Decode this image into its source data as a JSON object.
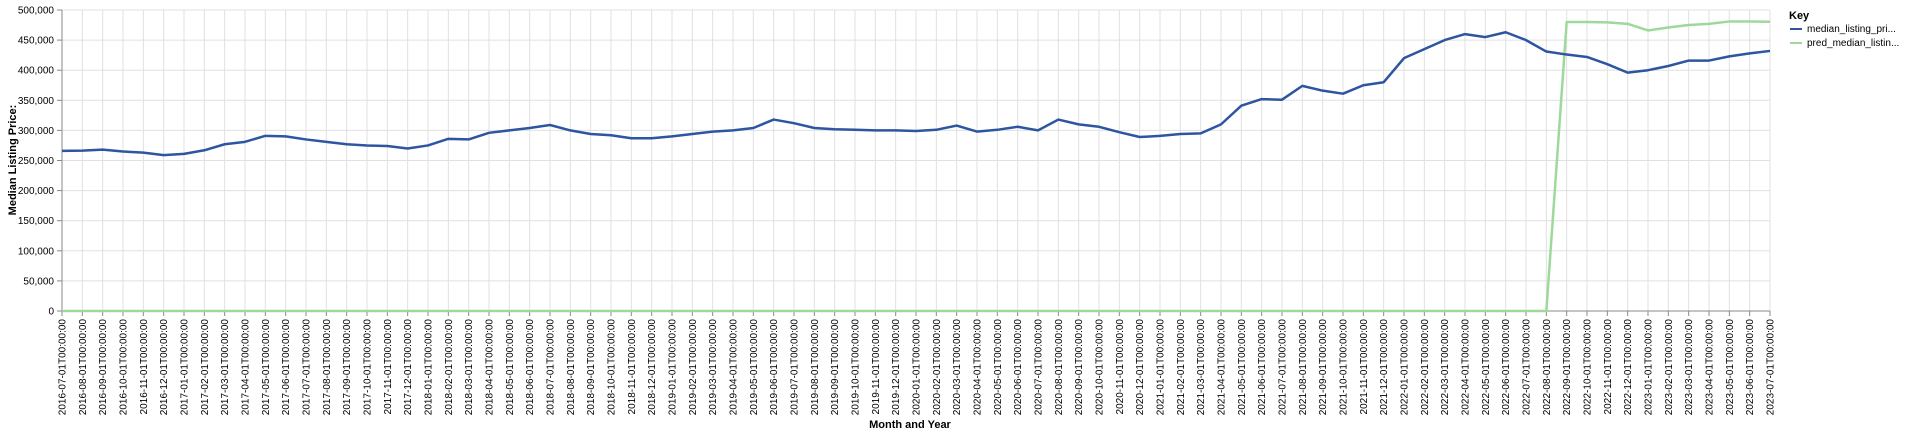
{
  "chart_data": {
    "type": "line",
    "xlabel": "Month and Year",
    "ylabel": "Median Listing Price:",
    "ylim": [
      0,
      500000
    ],
    "yticks": [
      "0",
      "50,000",
      "100,000",
      "150,000",
      "200,000",
      "250,000",
      "300,000",
      "350,000",
      "400,000",
      "450,000",
      "500,000"
    ],
    "grid": true,
    "legend": {
      "title": "Key",
      "position": "right"
    },
    "x": [
      "2016-07-01T00:00:00",
      "2016-08-01T00:00:00",
      "2016-09-01T00:00:00",
      "2016-10-01T00:00:00",
      "2016-11-01T00:00:00",
      "2016-12-01T00:00:00",
      "2017-01-01T00:00:00",
      "2017-02-01T00:00:00",
      "2017-03-01T00:00:00",
      "2017-04-01T00:00:00",
      "2017-05-01T00:00:00",
      "2017-06-01T00:00:00",
      "2017-07-01T00:00:00",
      "2017-08-01T00:00:00",
      "2017-09-01T00:00:00",
      "2017-10-01T00:00:00",
      "2017-11-01T00:00:00",
      "2017-12-01T00:00:00",
      "2018-01-01T00:00:00",
      "2018-02-01T00:00:00",
      "2018-03-01T00:00:00",
      "2018-04-01T00:00:00",
      "2018-05-01T00:00:00",
      "2018-06-01T00:00:00",
      "2018-07-01T00:00:00",
      "2018-08-01T00:00:00",
      "2018-09-01T00:00:00",
      "2018-10-01T00:00:00",
      "2018-11-01T00:00:00",
      "2018-12-01T00:00:00",
      "2019-01-01T00:00:00",
      "2019-02-01T00:00:00",
      "2019-03-01T00:00:00",
      "2019-04-01T00:00:00",
      "2019-05-01T00:00:00",
      "2019-06-01T00:00:00",
      "2019-07-01T00:00:00",
      "2019-08-01T00:00:00",
      "2019-09-01T00:00:00",
      "2019-10-01T00:00:00",
      "2019-11-01T00:00:00",
      "2019-12-01T00:00:00",
      "2020-01-01T00:00:00",
      "2020-02-01T00:00:00",
      "2020-03-01T00:00:00",
      "2020-04-01T00:00:00",
      "2020-05-01T00:00:00",
      "2020-06-01T00:00:00",
      "2020-07-01T00:00:00",
      "2020-08-01T00:00:00",
      "2020-09-01T00:00:00",
      "2020-10-01T00:00:00",
      "2020-11-01T00:00:00",
      "2020-12-01T00:00:00",
      "2021-01-01T00:00:00",
      "2021-02-01T00:00:00",
      "2021-03-01T00:00:00",
      "2021-04-01T00:00:00",
      "2021-05-01T00:00:00",
      "2021-06-01T00:00:00",
      "2021-07-01T00:00:00",
      "2021-08-01T00:00:00",
      "2021-09-01T00:00:00",
      "2021-10-01T00:00:00",
      "2021-11-01T00:00:00",
      "2021-12-01T00:00:00",
      "2022-01-01T00:00:00",
      "2022-02-01T00:00:00",
      "2022-03-01T00:00:00",
      "2022-04-01T00:00:00",
      "2022-05-01T00:00:00",
      "2022-06-01T00:00:00",
      "2022-07-01T00:00:00",
      "2022-08-01T00:00:00",
      "2022-09-01T00:00:00",
      "2022-10-01T00:00:00",
      "2022-11-01T00:00:00",
      "2022-12-01T00:00:00",
      "2023-01-01T00:00:00",
      "2023-02-01T00:00:00",
      "2023-03-01T00:00:00",
      "2023-04-01T00:00:00",
      "2023-05-01T00:00:00",
      "2023-06-01T00:00:00",
      "2023-07-01T00:00:00"
    ],
    "series": [
      {
        "name": "median_listing_pri...",
        "color": "#2d55a0",
        "values": [
          266000,
          266500,
          268000,
          265000,
          263000,
          259000,
          261000,
          267000,
          277000,
          281000,
          291000,
          290000,
          285000,
          281000,
          277000,
          275000,
          274000,
          270000,
          275000,
          286000,
          285000,
          296000,
          300000,
          304000,
          309000,
          300000,
          294000,
          292000,
          287000,
          287000,
          290000,
          294000,
          298000,
          300000,
          304000,
          318000,
          312000,
          304000,
          302000,
          301000,
          300000,
          300000,
          299000,
          301000,
          308000,
          298000,
          301000,
          306000,
          300000,
          318000,
          310000,
          306000,
          297000,
          289000,
          291000,
          294000,
          295000,
          310000,
          341000,
          352000,
          351000,
          374000,
          366000,
          361000,
          375000,
          380000,
          420000,
          435000,
          450000,
          460000,
          455000,
          463000,
          450000,
          431000,
          426000,
          422000,
          410000,
          396000,
          400000,
          407000,
          416000,
          416000,
          423000,
          428000,
          432000
        ]
      },
      {
        "name": "pred_median_listin...",
        "color": "#9fd99a",
        "values": [
          0,
          0,
          0,
          0,
          0,
          0,
          0,
          0,
          0,
          0,
          0,
          0,
          0,
          0,
          0,
          0,
          0,
          0,
          0,
          0,
          0,
          0,
          0,
          0,
          0,
          0,
          0,
          0,
          0,
          0,
          0,
          0,
          0,
          0,
          0,
          0,
          0,
          0,
          0,
          0,
          0,
          0,
          0,
          0,
          0,
          0,
          0,
          0,
          0,
          0,
          0,
          0,
          0,
          0,
          0,
          0,
          0,
          0,
          0,
          0,
          0,
          0,
          0,
          0,
          0,
          0,
          0,
          0,
          0,
          0,
          0,
          0,
          0,
          0,
          480000,
          480000,
          479500,
          477000,
          466000,
          471000,
          475000,
          477000,
          481000,
          481000,
          480500
        ]
      }
    ]
  }
}
